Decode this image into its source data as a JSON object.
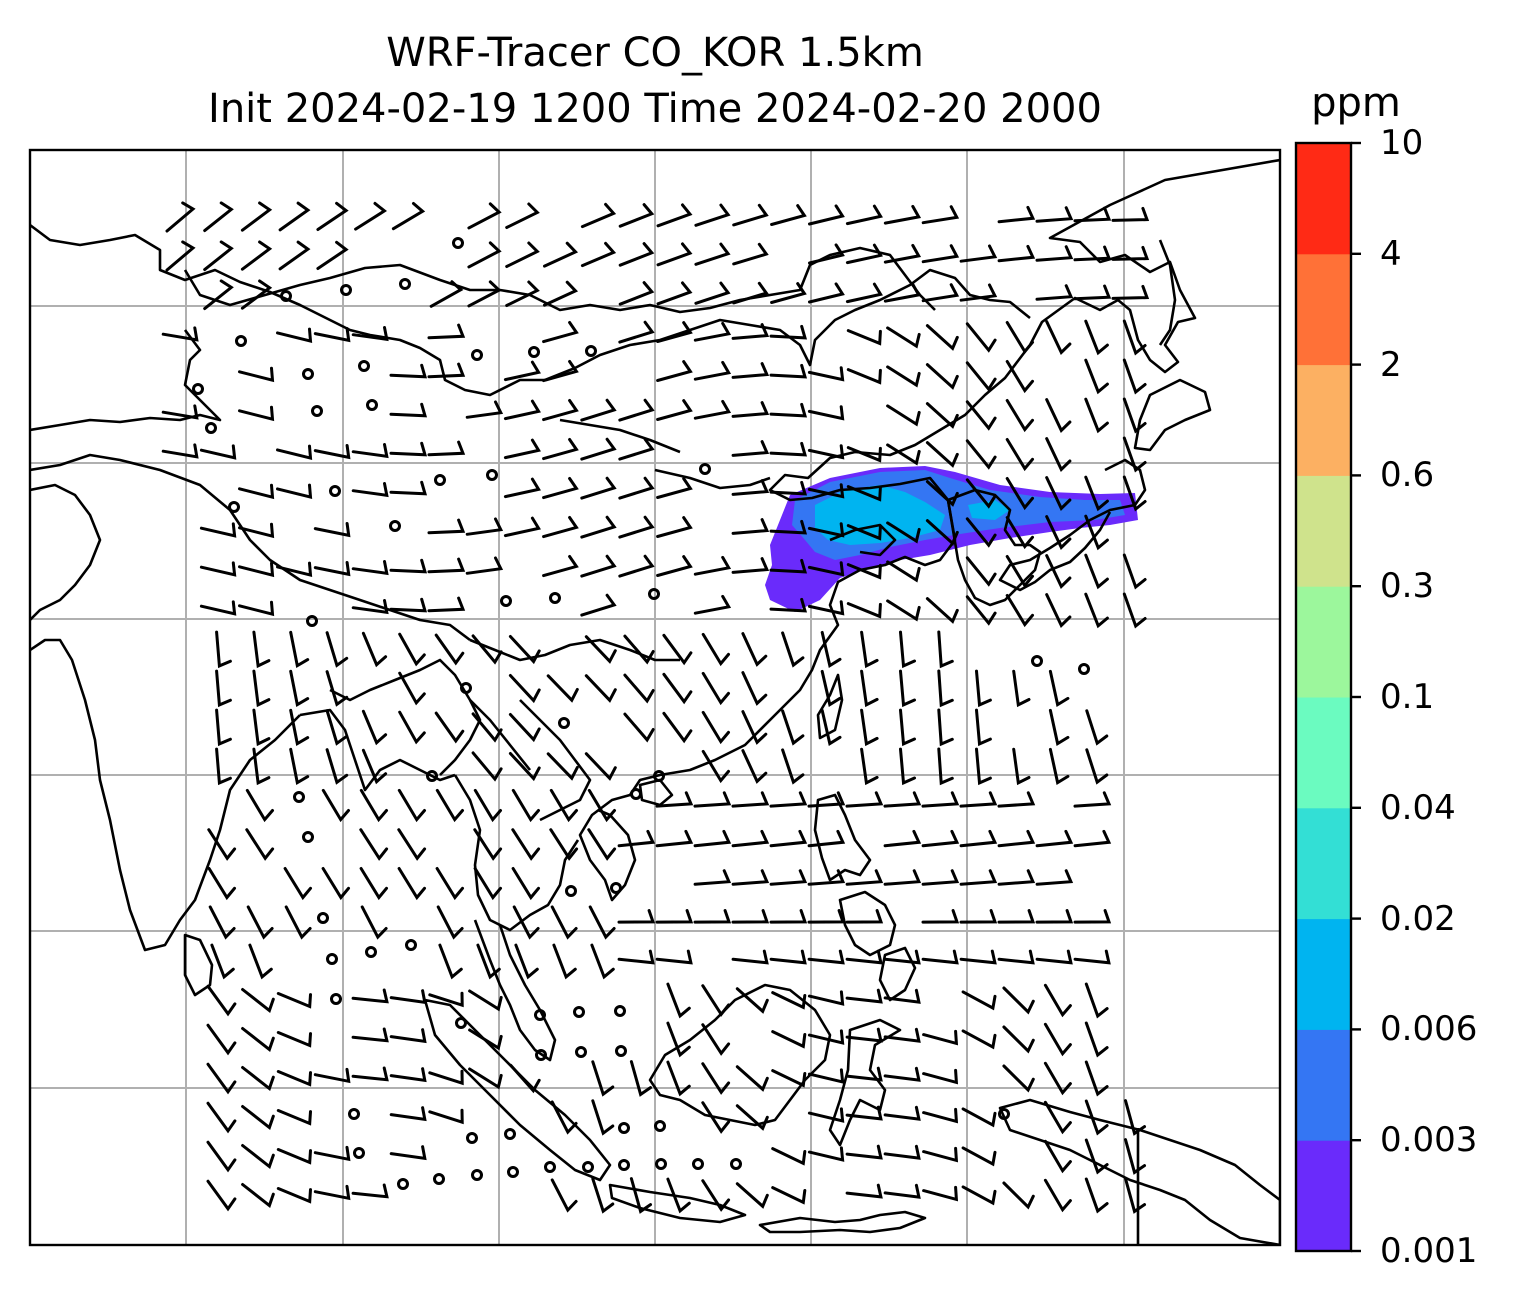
{
  "title": {
    "line1": "WRF-Tracer CO_KOR 1.5km",
    "line2": "Init 2024-02-19 1200 Time 2024-02-20 2000"
  },
  "colorbar": {
    "unit": "ppm",
    "levels": [
      "0.001",
      "0.003",
      "0.006",
      "0.02",
      "0.04",
      "0.1",
      "0.3",
      "0.6",
      "2",
      "4",
      "10"
    ],
    "colors": [
      "#6a2bfb",
      "#3476f3",
      "#00b4f0",
      "#33dfd5",
      "#6bfbc0",
      "#9cf79c",
      "#cfe38c",
      "#fcb062",
      "#ff7137",
      "#ff2a15"
    ]
  },
  "map": {
    "grid": true,
    "plume_colors": {
      "low": "#6a2bfb",
      "mid": "#3476f3",
      "high": "#00b4f0"
    },
    "calm_marker": "circle",
    "coastline_color": "#000000",
    "grid_color": "#b0b0b0"
  }
}
